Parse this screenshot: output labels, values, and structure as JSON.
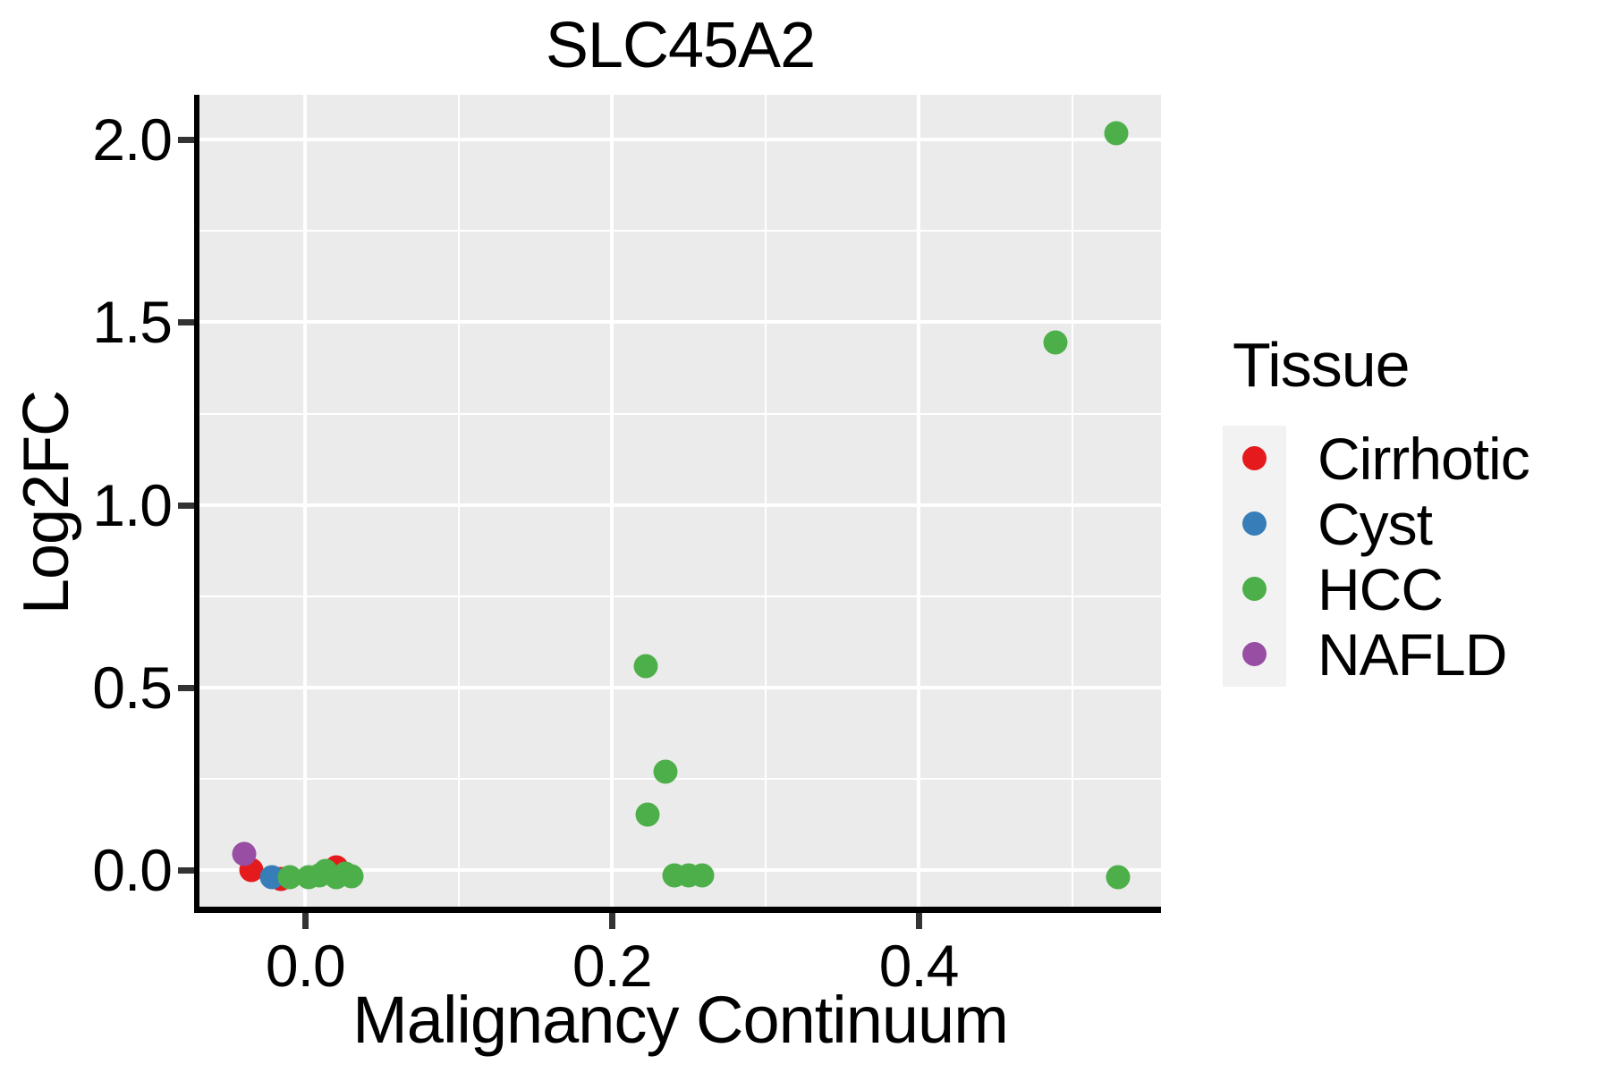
{
  "chart_data": {
    "type": "scatter",
    "title": "SLC45A2",
    "xlabel": "Malignancy Continuum",
    "ylabel": "Log2FC",
    "x_range": [
      -0.069,
      0.558
    ],
    "y_range": [
      -0.11,
      2.123
    ],
    "x_major_ticks": [
      0.0,
      0.2,
      0.4
    ],
    "x_tick_labels": [
      "0.0",
      "0.2",
      "0.4"
    ],
    "y_major_ticks": [
      0.0,
      0.5,
      1.0,
      1.5,
      2.0
    ],
    "y_tick_labels": [
      "0.0",
      "0.5",
      "1.0",
      "1.5",
      "2.0"
    ],
    "x_minor_ticks": [
      0.1,
      0.3,
      0.5
    ],
    "y_minor_ticks": [
      0.25,
      0.75,
      1.25,
      1.75
    ],
    "grid": "major and minor gridlines, white on gray panel",
    "panel_color": "#EBEBEB",
    "grid_color": "#FFFFFF",
    "legend_position": "right",
    "series": [
      {
        "name": "Cirrhotic",
        "color": "#E41A1C",
        "points": [
          [
            -0.035,
            0.001
          ],
          [
            -0.016,
            -0.024
          ],
          [
            0.02,
            0.007
          ]
        ]
      },
      {
        "name": "Cyst",
        "color": "#377EB8",
        "points": [
          [
            -0.022,
            -0.02
          ]
        ]
      },
      {
        "name": "HCC",
        "color": "#4DAF4A",
        "points": [
          [
            -0.01,
            -0.02
          ],
          [
            0.002,
            -0.02
          ],
          [
            0.009,
            -0.015
          ],
          [
            0.013,
            -0.003
          ],
          [
            0.02,
            -0.02
          ],
          [
            0.026,
            -0.01
          ],
          [
            0.03,
            -0.017
          ],
          [
            0.222,
            0.559
          ],
          [
            0.235,
            0.27
          ],
          [
            0.223,
            0.152
          ],
          [
            0.241,
            -0.015
          ],
          [
            0.25,
            -0.015
          ],
          [
            0.259,
            -0.015
          ],
          [
            0.489,
            1.444
          ],
          [
            0.529,
            2.017
          ],
          [
            0.53,
            -0.02
          ]
        ]
      },
      {
        "name": "NAFLD",
        "color": "#984EA3",
        "points": [
          [
            -0.04,
            0.044
          ]
        ]
      }
    ]
  },
  "legend": {
    "title": "Tissue",
    "entries": [
      {
        "label": "Cirrhotic",
        "color": "#E41A1C"
      },
      {
        "label": "Cyst",
        "color": "#377EB8"
      },
      {
        "label": "HCC",
        "color": "#4DAF4A"
      },
      {
        "label": "NAFLD",
        "color": "#984EA3"
      }
    ]
  }
}
